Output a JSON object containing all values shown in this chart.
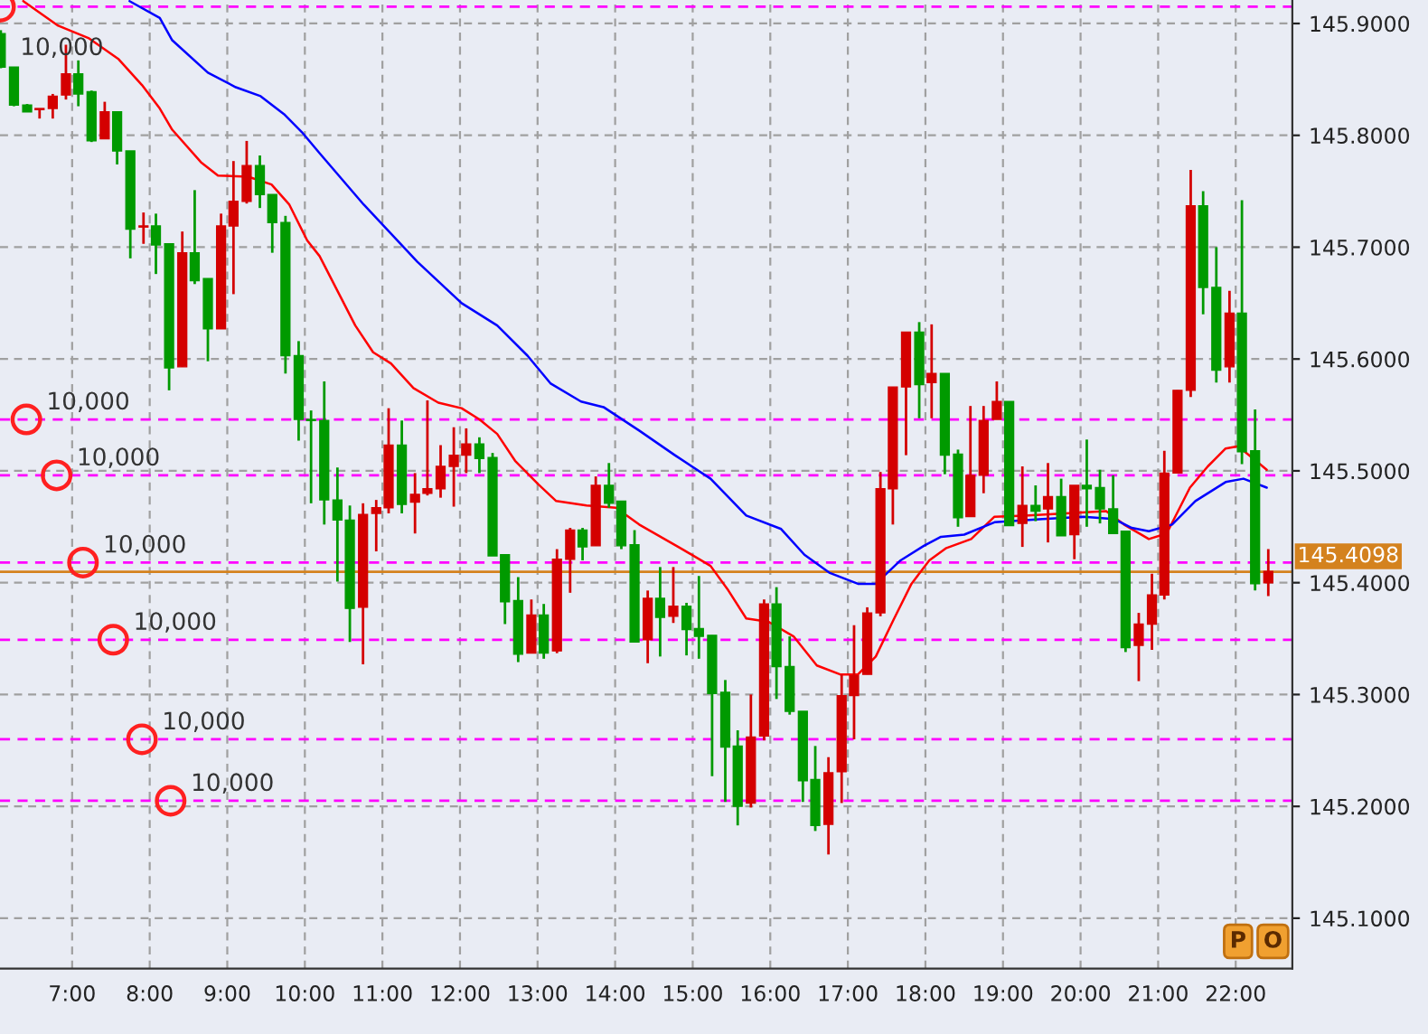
{
  "chart_data": {
    "type": "candlestick",
    "x": [
      6.08,
      6.25,
      6.42,
      6.58,
      6.75,
      6.92,
      7.08,
      7.25,
      7.42,
      7.58,
      7.75,
      7.92,
      8.08,
      8.25,
      8.42,
      8.58,
      8.75,
      8.92,
      9.08,
      9.25,
      9.42,
      9.58,
      9.75,
      9.92,
      10.08,
      10.25,
      10.42,
      10.58,
      10.75,
      10.92,
      11.08,
      11.25,
      11.42,
      11.58,
      11.75,
      11.92,
      12.08,
      12.25,
      12.42,
      12.58,
      12.75,
      12.92,
      13.08,
      13.25,
      13.42,
      13.58,
      13.75,
      13.92,
      14.08,
      14.25,
      14.42,
      14.58,
      14.75,
      14.92,
      15.08,
      15.25,
      15.42,
      15.58,
      15.75,
      15.92,
      16.08,
      16.25,
      16.42,
      16.58,
      16.75,
      16.92,
      17.08,
      17.25,
      17.42,
      17.58,
      17.75,
      17.92,
      18.08,
      18.25,
      18.42,
      18.58,
      18.75,
      18.92,
      19.08,
      19.25,
      19.42,
      19.58,
      19.75,
      19.92,
      20.08,
      20.25,
      20.42,
      20.58,
      20.75,
      20.92,
      21.08,
      21.25,
      21.42,
      21.58,
      21.75,
      21.92,
      22.08,
      22.25,
      22.42
    ],
    "ohlc": [
      [
        145.891,
        145.894,
        145.86,
        145.861
      ],
      [
        145.861,
        145.861,
        145.826,
        145.827
      ],
      [
        145.827,
        145.828,
        145.821,
        145.821
      ],
      [
        145.823,
        145.824,
        145.815,
        145.824
      ],
      [
        145.824,
        145.837,
        145.815,
        145.835
      ],
      [
        145.836,
        145.881,
        145.832,
        145.855
      ],
      [
        145.855,
        145.867,
        145.826,
        145.837
      ],
      [
        145.839,
        145.84,
        145.794,
        145.795
      ],
      [
        145.797,
        145.83,
        145.797,
        145.821
      ],
      [
        145.821,
        145.821,
        145.774,
        145.786
      ],
      [
        145.786,
        145.786,
        145.69,
        145.716
      ],
      [
        145.718,
        145.731,
        145.703,
        145.719
      ],
      [
        145.719,
        145.73,
        145.676,
        145.702
      ],
      [
        145.703,
        145.703,
        145.572,
        145.592
      ],
      [
        145.593,
        145.714,
        145.593,
        145.695
      ],
      [
        145.695,
        145.751,
        145.667,
        145.67
      ],
      [
        145.672,
        145.672,
        145.598,
        145.627
      ],
      [
        145.627,
        145.73,
        145.627,
        145.719
      ],
      [
        145.719,
        145.777,
        145.658,
        145.741
      ],
      [
        145.741,
        145.795,
        145.739,
        145.773
      ],
      [
        145.773,
        145.782,
        145.735,
        145.747
      ],
      [
        145.747,
        145.747,
        145.695,
        145.722
      ],
      [
        145.722,
        145.728,
        145.587,
        145.603
      ],
      [
        145.603,
        145.616,
        145.527,
        145.546
      ],
      [
        145.546,
        145.554,
        145.471,
        145.545
      ],
      [
        145.545,
        145.58,
        145.452,
        145.474
      ],
      [
        145.474,
        145.503,
        145.401,
        145.456
      ],
      [
        145.456,
        145.469,
        145.347,
        145.377
      ],
      [
        145.378,
        145.471,
        145.327,
        145.461
      ],
      [
        145.462,
        145.474,
        145.428,
        145.467
      ],
      [
        145.467,
        145.556,
        145.462,
        145.523
      ],
      [
        145.523,
        145.545,
        145.462,
        145.47
      ],
      [
        145.472,
        145.498,
        145.444,
        145.479
      ],
      [
        145.48,
        145.563,
        145.478,
        145.484
      ],
      [
        145.484,
        145.523,
        145.476,
        145.504
      ],
      [
        145.504,
        145.539,
        145.468,
        145.514
      ],
      [
        145.514,
        145.538,
        145.498,
        145.524
      ],
      [
        145.524,
        145.53,
        145.498,
        145.511
      ],
      [
        145.512,
        145.516,
        145.424,
        145.424
      ],
      [
        145.425,
        145.425,
        145.363,
        145.383
      ],
      [
        145.384,
        145.405,
        145.329,
        145.336
      ],
      [
        145.337,
        145.385,
        145.337,
        145.371
      ],
      [
        145.371,
        145.381,
        145.332,
        145.337
      ],
      [
        145.339,
        145.43,
        145.337,
        145.421
      ],
      [
        145.421,
        145.449,
        145.391,
        145.447
      ],
      [
        145.447,
        145.449,
        145.42,
        145.432
      ],
      [
        145.433,
        145.495,
        145.433,
        145.487
      ],
      [
        145.487,
        145.507,
        145.467,
        145.471
      ],
      [
        145.473,
        145.473,
        145.43,
        145.433
      ],
      [
        145.434,
        145.447,
        145.347,
        145.347
      ],
      [
        145.349,
        145.393,
        145.328,
        145.386
      ],
      [
        145.386,
        145.414,
        145.334,
        145.369
      ],
      [
        145.37,
        145.414,
        145.364,
        145.379
      ],
      [
        145.379,
        145.382,
        145.335,
        145.358
      ],
      [
        145.359,
        145.406,
        145.332,
        145.352
      ],
      [
        145.353,
        145.353,
        145.227,
        145.301
      ],
      [
        145.302,
        145.313,
        145.204,
        145.253
      ],
      [
        145.254,
        145.268,
        145.183,
        145.2
      ],
      [
        145.203,
        145.3,
        145.199,
        145.262
      ],
      [
        145.263,
        145.385,
        145.259,
        145.381
      ],
      [
        145.381,
        145.396,
        145.296,
        145.325
      ],
      [
        145.325,
        145.352,
        145.282,
        145.285
      ],
      [
        145.285,
        145.285,
        145.204,
        145.223
      ],
      [
        145.224,
        145.254,
        145.178,
        145.183
      ],
      [
        145.184,
        145.244,
        145.157,
        145.23
      ],
      [
        145.231,
        145.318,
        145.203,
        145.299
      ],
      [
        145.299,
        145.362,
        145.26,
        145.317
      ],
      [
        145.318,
        145.378,
        145.318,
        145.373
      ],
      [
        145.373,
        145.499,
        145.37,
        145.484
      ],
      [
        145.484,
        145.575,
        145.452,
        145.575
      ],
      [
        145.575,
        145.624,
        145.514,
        145.624
      ],
      [
        145.624,
        145.633,
        145.547,
        145.577
      ],
      [
        145.579,
        145.631,
        145.547,
        145.587
      ],
      [
        145.587,
        145.587,
        145.497,
        145.514
      ],
      [
        145.515,
        145.519,
        145.45,
        145.458
      ],
      [
        145.459,
        145.558,
        145.459,
        145.496
      ],
      [
        145.496,
        145.558,
        145.48,
        145.545
      ],
      [
        145.546,
        145.58,
        145.546,
        145.562
      ],
      [
        145.562,
        145.562,
        145.451,
        145.451
      ],
      [
        145.453,
        145.504,
        145.432,
        145.469
      ],
      [
        145.469,
        145.487,
        145.455,
        145.464
      ],
      [
        145.466,
        145.507,
        145.436,
        145.477
      ],
      [
        145.477,
        145.493,
        145.442,
        145.442
      ],
      [
        145.443,
        145.487,
        145.421,
        145.487
      ],
      [
        145.487,
        145.528,
        145.45,
        145.484
      ],
      [
        145.485,
        145.501,
        145.453,
        145.466
      ],
      [
        145.466,
        145.496,
        145.444,
        145.444
      ],
      [
        145.446,
        145.446,
        145.338,
        145.342
      ],
      [
        145.344,
        145.373,
        145.312,
        145.363
      ],
      [
        145.363,
        145.408,
        145.34,
        145.389
      ],
      [
        145.389,
        145.518,
        145.385,
        145.498
      ],
      [
        145.498,
        145.572,
        145.498,
        145.572
      ],
      [
        145.572,
        145.769,
        145.566,
        145.737
      ],
      [
        145.737,
        145.75,
        145.64,
        145.664
      ],
      [
        145.664,
        145.7,
        145.579,
        145.59
      ],
      [
        145.593,
        145.661,
        145.579,
        145.641
      ],
      [
        145.641,
        145.742,
        145.506,
        145.517
      ],
      [
        145.518,
        145.555,
        145.393,
        145.399
      ],
      [
        145.4,
        145.43,
        145.388,
        145.41
      ]
    ],
    "colors": [
      "#009a00",
      "#009a00",
      "#009a00",
      "#d40000",
      "#d40000",
      "#d40000",
      "#009a00",
      "#009a00",
      "#d40000",
      "#009a00",
      "#009a00",
      "#d40000",
      "#009a00",
      "#009a00",
      "#d40000",
      "#009a00",
      "#009a00",
      "#d40000",
      "#d40000",
      "#d40000",
      "#009a00",
      "#009a00",
      "#009a00",
      "#009a00",
      "#009a00",
      "#009a00",
      "#009a00",
      "#009a00",
      "#d40000",
      "#d40000",
      "#d40000",
      "#009a00",
      "#d40000",
      "#d40000",
      "#d40000",
      "#d40000",
      "#d40000",
      "#009a00",
      "#009a00",
      "#009a00",
      "#009a00",
      "#d40000",
      "#009a00",
      "#d40000",
      "#d40000",
      "#009a00",
      "#d40000",
      "#009a00",
      "#009a00",
      "#009a00",
      "#d40000",
      "#009a00",
      "#d40000",
      "#009a00",
      "#009a00",
      "#009a00",
      "#009a00",
      "#009a00",
      "#d40000",
      "#d40000",
      "#009a00",
      "#009a00",
      "#009a00",
      "#009a00",
      "#d40000",
      "#d40000",
      "#d40000",
      "#d40000",
      "#d40000",
      "#d40000",
      "#d40000",
      "#009a00",
      "#d40000",
      "#009a00",
      "#009a00",
      "#d40000",
      "#d40000",
      "#d40000",
      "#009a00",
      "#d40000",
      "#009a00",
      "#d40000",
      "#009a00",
      "#d40000",
      "#009a00",
      "#009a00",
      "#009a00",
      "#009a00",
      "#d40000",
      "#d40000",
      "#d40000",
      "#d40000",
      "#d40000",
      "#009a00",
      "#009a00",
      "#d40000",
      "#009a00",
      "#009a00",
      "#d40000"
    ],
    "series": [
      {
        "type": "line",
        "color": "#ff0000",
        "x": [
          6.37,
          6.82,
          7.21,
          7.6,
          7.9,
          8.13,
          8.29,
          8.66,
          8.88,
          9.27,
          9.57,
          9.8,
          10.03,
          10.19,
          10.65,
          10.88,
          11.11,
          11.4,
          11.72,
          12.02,
          12.25,
          12.48,
          12.71,
          13.01,
          13.24,
          13.63,
          14.01,
          14.31,
          14.84,
          15.23,
          15.46,
          15.69,
          15.98,
          16.3,
          16.6,
          16.9,
          17.13,
          17.36,
          17.59,
          17.82,
          18.05,
          18.27,
          18.59,
          18.89,
          19.28,
          19.81,
          20.33,
          20.56,
          20.88,
          21.11,
          21.41,
          21.64,
          21.87,
          22.03,
          22.26,
          22.4
        ],
        "values": [
          145.92,
          145.898,
          145.887,
          145.868,
          145.845,
          145.824,
          145.805,
          145.776,
          145.764,
          145.763,
          145.756,
          145.738,
          145.706,
          145.692,
          145.63,
          145.606,
          145.596,
          145.574,
          145.561,
          145.556,
          145.546,
          145.533,
          145.509,
          145.488,
          145.473,
          145.469,
          145.467,
          145.452,
          145.431,
          145.415,
          145.393,
          145.368,
          145.365,
          145.352,
          145.326,
          145.318,
          145.318,
          145.334,
          145.367,
          145.399,
          145.42,
          145.431,
          145.439,
          145.459,
          145.46,
          145.462,
          145.464,
          145.452,
          145.439,
          145.444,
          145.485,
          145.504,
          145.52,
          145.522,
          145.509,
          145.501
        ]
      },
      {
        "type": "line",
        "color": "#0000ff",
        "x": [
          7.74,
          8.13,
          8.29,
          8.75,
          9.11,
          9.43,
          9.73,
          9.96,
          10.19,
          10.76,
          11.45,
          12.02,
          12.48,
          12.87,
          13.17,
          13.56,
          13.85,
          14.31,
          14.77,
          15.23,
          15.69,
          16.14,
          16.44,
          16.76,
          17.13,
          17.36,
          17.68,
          17.98,
          18.2,
          18.5,
          18.89,
          19.51,
          20.04,
          20.43,
          20.66,
          20.88,
          21.18,
          21.48,
          21.87,
          22.1,
          22.4
        ],
        "values": [
          145.92,
          145.905,
          145.885,
          145.856,
          145.843,
          145.835,
          145.819,
          145.803,
          145.784,
          145.738,
          145.687,
          145.65,
          145.63,
          145.603,
          145.578,
          145.562,
          145.557,
          145.536,
          145.514,
          145.493,
          145.46,
          145.448,
          145.425,
          145.409,
          145.399,
          145.399,
          145.42,
          145.433,
          145.441,
          145.443,
          145.454,
          145.457,
          145.459,
          145.457,
          145.449,
          145.446,
          145.452,
          145.473,
          145.49,
          145.493,
          145.485
        ]
      }
    ],
    "xlim": [
      6.07,
      22.73
    ],
    "ylim": [
      145.055,
      145.921
    ],
    "xticks": [
      {
        "value": 7,
        "label": "7:00"
      },
      {
        "value": 8,
        "label": "8:00"
      },
      {
        "value": 9,
        "label": "9:00"
      },
      {
        "value": 10,
        "label": "10:00"
      },
      {
        "value": 11,
        "label": "11:00"
      },
      {
        "value": 12,
        "label": "12:00"
      },
      {
        "value": 13,
        "label": "13:00"
      },
      {
        "value": 14,
        "label": "14:00"
      },
      {
        "value": 15,
        "label": "15:00"
      },
      {
        "value": 16,
        "label": "16:00"
      },
      {
        "value": 17,
        "label": "17:00"
      },
      {
        "value": 18,
        "label": "18:00"
      },
      {
        "value": 19,
        "label": "19:00"
      },
      {
        "value": 20,
        "label": "20:00"
      },
      {
        "value": 21,
        "label": "21:00"
      },
      {
        "value": 22,
        "label": "22:00"
      }
    ],
    "yticks": [
      {
        "value": 145.1,
        "label": "145.1000"
      },
      {
        "value": 145.2,
        "label": "145.2000"
      },
      {
        "value": 145.3,
        "label": "145.3000"
      },
      {
        "value": 145.4,
        "label": "145.4000"
      },
      {
        "value": 145.5,
        "label": "145.5000"
      },
      {
        "value": 145.6,
        "label": "145.6000"
      },
      {
        "value": 145.7,
        "label": "145.7000"
      },
      {
        "value": 145.8,
        "label": "145.8000"
      },
      {
        "value": 145.9,
        "label": "145.9000"
      }
    ],
    "grid": true,
    "ref_lines": [
      {
        "axis": "y",
        "value": 145.915,
        "color": "#ff00ff",
        "line_style": "dashed"
      },
      {
        "axis": "y",
        "value": 145.546,
        "color": "#ff00ff",
        "line_style": "dashed"
      },
      {
        "axis": "y",
        "value": 145.496,
        "color": "#ff00ff",
        "line_style": "dashed"
      },
      {
        "axis": "y",
        "value": 145.418,
        "color": "#ff00ff",
        "line_style": "dashed"
      },
      {
        "axis": "y",
        "value": 145.349,
        "color": "#ff00ff",
        "line_style": "dashed"
      },
      {
        "axis": "y",
        "value": 145.26,
        "color": "#ff00ff",
        "line_style": "dashed"
      },
      {
        "axis": "y",
        "value": 145.205,
        "color": "#ff00ff",
        "line_style": "dashed"
      },
      {
        "axis": "y",
        "value": 145.4098,
        "label": "145.4098",
        "color": "#d4821e",
        "line_style": "solid"
      }
    ],
    "annotations": [
      {
        "text": "10,000",
        "x": 6.07,
        "y": 145.915
      },
      {
        "text": "10,000",
        "x": 6.41,
        "y": 145.546
      },
      {
        "text": "10,000",
        "x": 6.8,
        "y": 145.496
      },
      {
        "text": "10,000",
        "x": 7.14,
        "y": 145.418
      },
      {
        "text": "10,000",
        "x": 7.53,
        "y": 145.349
      },
      {
        "text": "10,000",
        "x": 7.9,
        "y": 145.26
      },
      {
        "text": "10,000",
        "x": 8.27,
        "y": 145.205
      },
      "P",
      "O"
    ]
  }
}
